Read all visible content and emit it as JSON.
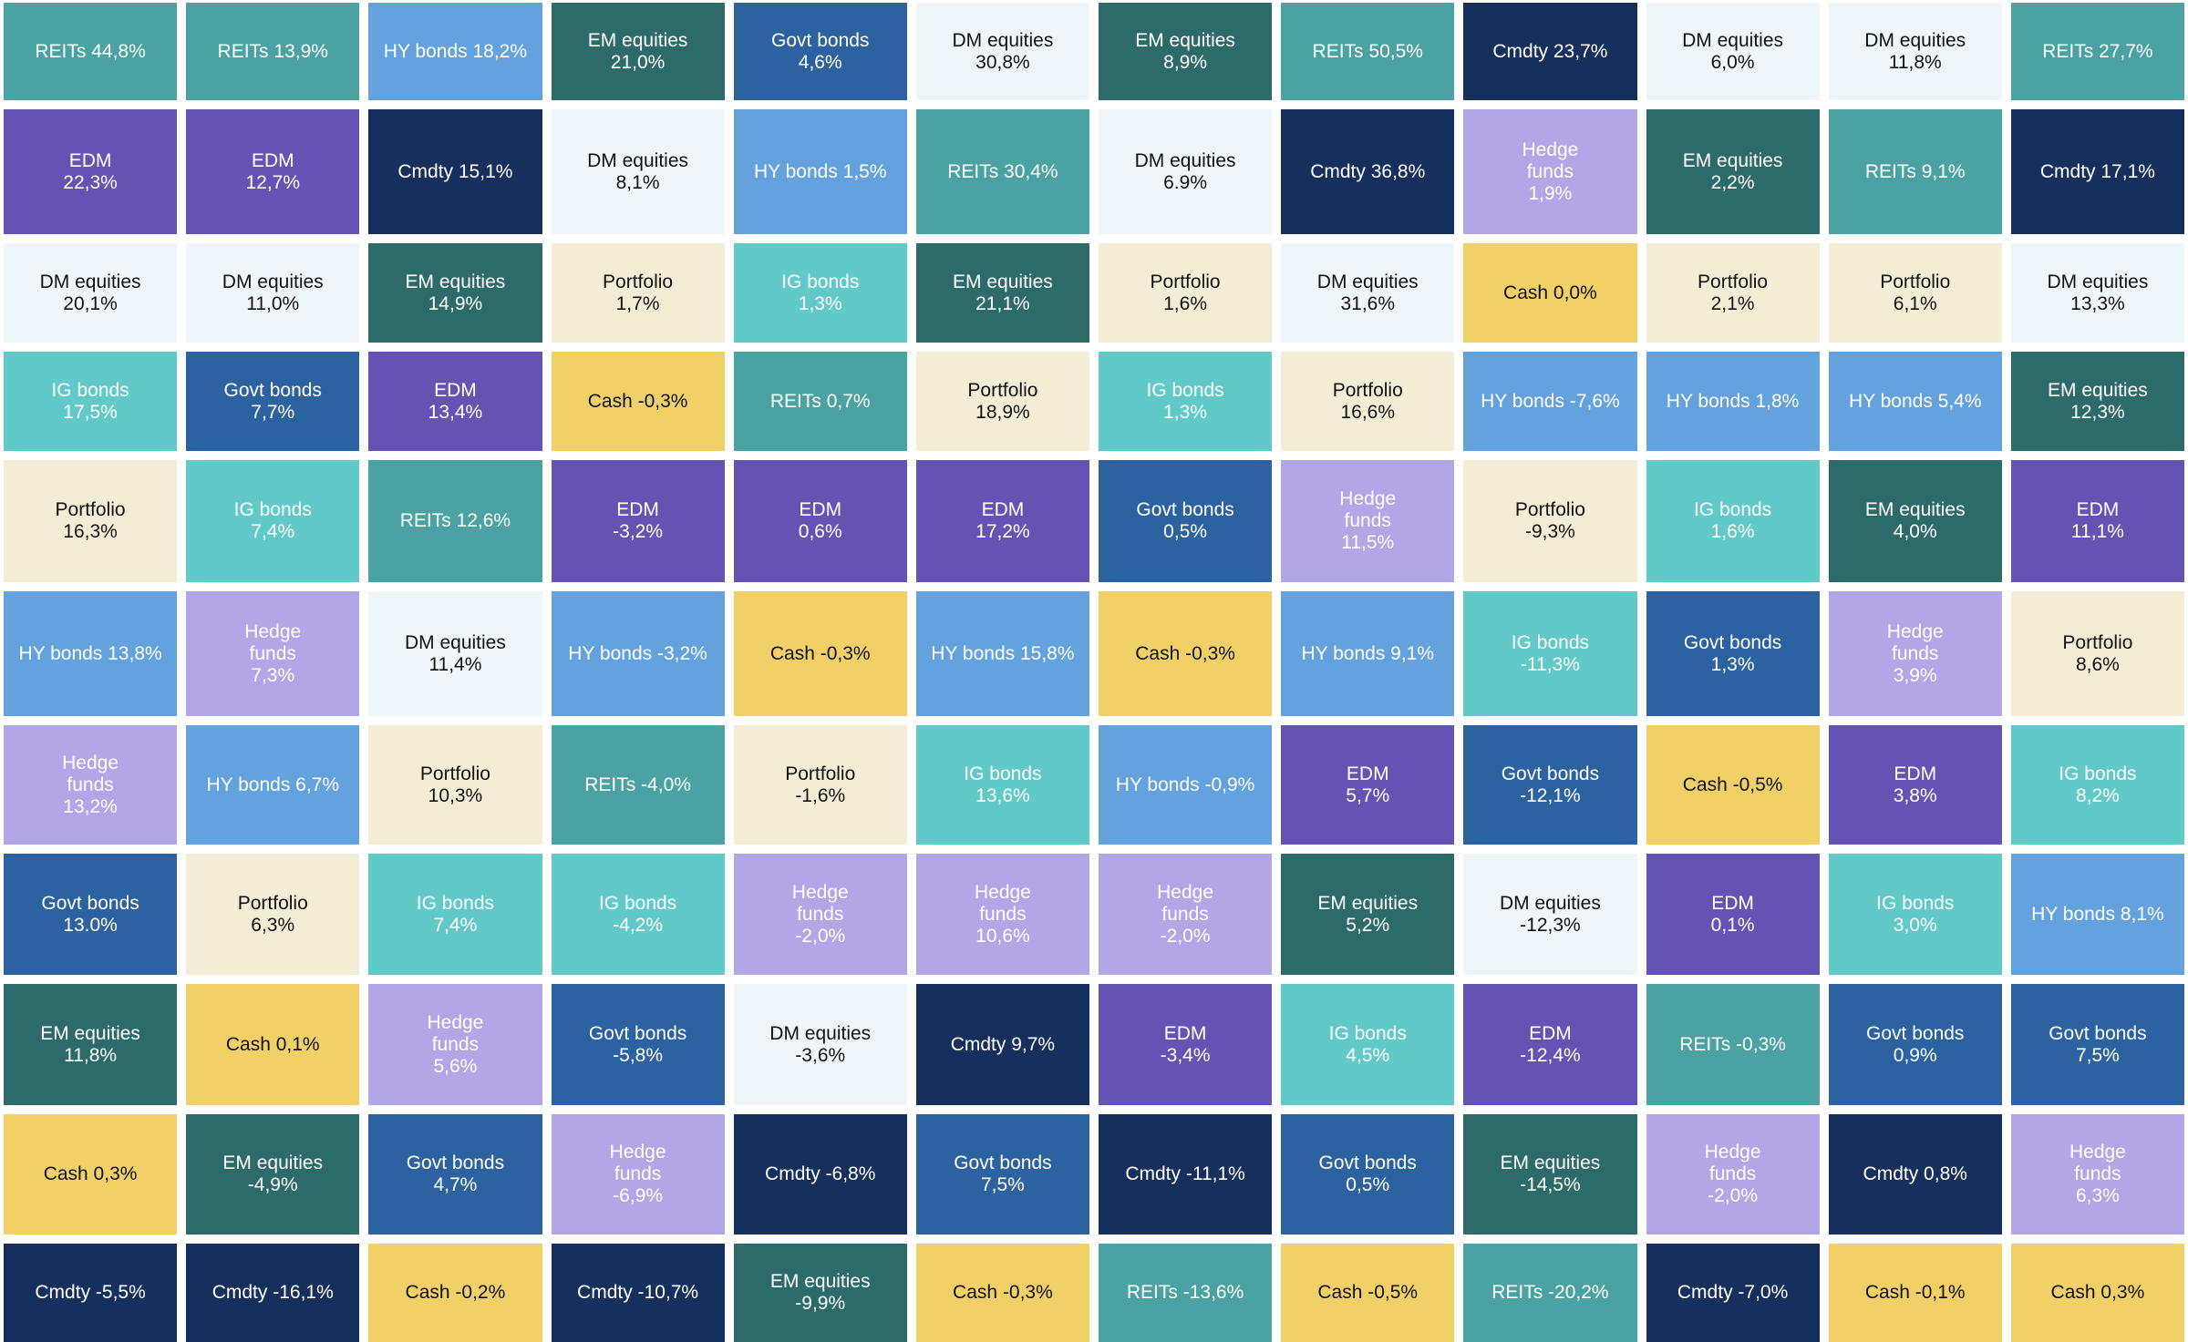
{
  "chart_data": {
    "type": "table",
    "title": "",
    "columns": 12,
    "colors": {
      "REITs": "#4aa3a2",
      "HY bonds": "#63a2dd",
      "EM equities": "#2c6b69",
      "Govt bonds": "#2d62a0",
      "DM equities": "#eef6f9",
      "Cmdty": "#172f5d",
      "EDM": "#6453b2",
      "Hedge funds": "#b2a6e6",
      "Portfolio": "#f4edd6",
      "IG bonds": "#62c9c9",
      "Cash": "#f2d068"
    },
    "rows": [
      [
        {
          "asset": "REITs",
          "label": "REITs 44,8%"
        },
        {
          "asset": "REITs",
          "label": "REITs 13,9%"
        },
        {
          "asset": "HY bonds",
          "label": "HY bonds 18,2%"
        },
        {
          "asset": "EM equities",
          "label": "EM equities\n21,0%"
        },
        {
          "asset": "Govt bonds",
          "label": "Govt bonds\n4,6%"
        },
        {
          "asset": "DM equities",
          "label": "DM equities\n30,8%"
        },
        {
          "asset": "EM equities",
          "label": "EM equities\n8,9%"
        },
        {
          "asset": "REITs",
          "label": "REITs 50,5%"
        },
        {
          "asset": "Cmdty",
          "label": "Cmdty 23,7%"
        },
        {
          "asset": "DM equities",
          "label": "DM equities\n6,0%"
        },
        {
          "asset": "DM equities",
          "label": "DM equities\n11,8%"
        },
        {
          "asset": "REITs",
          "label": "REITs 27,7%"
        }
      ],
      [
        {
          "asset": "EDM",
          "label": "EDM\n22,3%"
        },
        {
          "asset": "EDM",
          "label": "EDM\n12,7%"
        },
        {
          "asset": "Cmdty",
          "label": "Cmdty 15,1%"
        },
        {
          "asset": "DM equities",
          "label": "DM equities\n8,1%"
        },
        {
          "asset": "HY bonds",
          "label": "HY bonds 1,5%"
        },
        {
          "asset": "REITs",
          "label": "REITs 30,4%"
        },
        {
          "asset": "DM equities",
          "label": "DM equities\n6.9%"
        },
        {
          "asset": "Cmdty",
          "label": "Cmdty 36,8%"
        },
        {
          "asset": "Hedge funds",
          "label": "Hedge\nfunds\n1,9%"
        },
        {
          "asset": "EM equities",
          "label": "EM equities\n2,2%"
        },
        {
          "asset": "REITs",
          "label": "REITs 9,1%"
        },
        {
          "asset": "Cmdty",
          "label": "Cmdty 17,1%"
        }
      ],
      [
        {
          "asset": "DM equities",
          "label": "DM equities\n20,1%"
        },
        {
          "asset": "DM equities",
          "label": "DM equities\n11,0%"
        },
        {
          "asset": "EM equities",
          "label": "EM equities\n14,9%"
        },
        {
          "asset": "Portfolio",
          "label": "Portfolio\n1,7%"
        },
        {
          "asset": "IG bonds",
          "label": "IG bonds\n1,3%"
        },
        {
          "asset": "EM equities",
          "label": "EM equities\n21,1%"
        },
        {
          "asset": "Portfolio",
          "label": "Portfolio\n1,6%"
        },
        {
          "asset": "DM equities",
          "label": "DM equities\n31,6%"
        },
        {
          "asset": "Cash",
          "label": "Cash 0,0%"
        },
        {
          "asset": "Portfolio",
          "label": "Portfolio\n2,1%"
        },
        {
          "asset": "Portfolio",
          "label": "Portfolio\n6,1%"
        },
        {
          "asset": "DM equities",
          "label": "DM equities\n13,3%"
        }
      ],
      [
        {
          "asset": "IG bonds",
          "label": "IG bonds\n17,5%"
        },
        {
          "asset": "Govt bonds",
          "label": "Govt bonds\n7,7%"
        },
        {
          "asset": "EDM",
          "label": "EDM\n13,4%"
        },
        {
          "asset": "Cash",
          "label": "Cash -0,3%"
        },
        {
          "asset": "REITs",
          "label": "REITs 0,7%"
        },
        {
          "asset": "Portfolio",
          "label": "Portfolio\n18,9%"
        },
        {
          "asset": "IG bonds",
          "label": "IG bonds\n1,3%"
        },
        {
          "asset": "Portfolio",
          "label": "Portfolio\n16,6%"
        },
        {
          "asset": "HY bonds",
          "label": "HY bonds -7,6%"
        },
        {
          "asset": "HY bonds",
          "label": "HY bonds 1,8%"
        },
        {
          "asset": "HY bonds",
          "label": "HY bonds 5,4%"
        },
        {
          "asset": "EM equities",
          "label": "EM equities\n12,3%"
        }
      ],
      [
        {
          "asset": "Portfolio",
          "label": "Portfolio\n16,3%"
        },
        {
          "asset": "IG bonds",
          "label": "IG bonds\n7,4%"
        },
        {
          "asset": "REITs",
          "label": "REITs 12,6%"
        },
        {
          "asset": "EDM",
          "label": "EDM\n-3,2%"
        },
        {
          "asset": "EDM",
          "label": "EDM\n0,6%"
        },
        {
          "asset": "EDM",
          "label": "EDM\n17,2%"
        },
        {
          "asset": "Govt bonds",
          "label": "Govt bonds\n0,5%"
        },
        {
          "asset": "Hedge funds",
          "label": "Hedge\nfunds\n11,5%"
        },
        {
          "asset": "Portfolio",
          "label": "Portfolio\n-9,3%"
        },
        {
          "asset": "IG bonds",
          "label": "IG bonds\n1,6%"
        },
        {
          "asset": "EM equities",
          "label": "EM equities\n4,0%"
        },
        {
          "asset": "EDM",
          "label": "EDM\n11,1%"
        }
      ],
      [
        {
          "asset": "HY bonds",
          "label": "HY bonds 13,8%"
        },
        {
          "asset": "Hedge funds",
          "label": "Hedge\nfunds\n7,3%"
        },
        {
          "asset": "DM equities",
          "label": "DM equities\n11,4%"
        },
        {
          "asset": "HY bonds",
          "label": "HY bonds -3,2%"
        },
        {
          "asset": "Cash",
          "label": "Cash -0,3%"
        },
        {
          "asset": "HY bonds",
          "label": "HY bonds 15,8%"
        },
        {
          "asset": "Cash",
          "label": "Cash -0,3%"
        },
        {
          "asset": "HY bonds",
          "label": "HY bonds 9,1%"
        },
        {
          "asset": "IG bonds",
          "label": "IG bonds\n-11,3%"
        },
        {
          "asset": "Govt bonds",
          "label": "Govt bonds\n1,3%"
        },
        {
          "asset": "Hedge funds",
          "label": "Hedge\nfunds\n3,9%"
        },
        {
          "asset": "Portfolio",
          "label": "Portfolio\n8,6%"
        }
      ],
      [
        {
          "asset": "Hedge funds",
          "label": "Hedge\nfunds\n13,2%"
        },
        {
          "asset": "HY bonds",
          "label": "HY bonds 6,7%"
        },
        {
          "asset": "Portfolio",
          "label": "Portfolio\n10,3%"
        },
        {
          "asset": "REITs",
          "label": "REITs -4,0%"
        },
        {
          "asset": "Portfolio",
          "label": "Portfolio\n-1,6%"
        },
        {
          "asset": "IG bonds",
          "label": "IG bonds\n13,6%"
        },
        {
          "asset": "HY bonds",
          "label": "HY bonds -0,9%"
        },
        {
          "asset": "EDM",
          "label": "EDM\n5,7%"
        },
        {
          "asset": "Govt bonds",
          "label": "Govt bonds\n-12,1%"
        },
        {
          "asset": "Cash",
          "label": "Cash -0,5%"
        },
        {
          "asset": "EDM",
          "label": "EDM\n3,8%"
        },
        {
          "asset": "IG bonds",
          "label": "IG bonds\n8,2%"
        }
      ],
      [
        {
          "asset": "Govt bonds",
          "label": "Govt bonds\n13.0%"
        },
        {
          "asset": "Portfolio",
          "label": "Portfolio\n6,3%"
        },
        {
          "asset": "IG bonds",
          "label": "IG bonds\n7,4%"
        },
        {
          "asset": "IG bonds",
          "label": "IG bonds\n-4,2%"
        },
        {
          "asset": "Hedge funds",
          "label": "Hedge\nfunds\n-2,0%"
        },
        {
          "asset": "Hedge funds",
          "label": "Hedge\nfunds\n10,6%"
        },
        {
          "asset": "Hedge funds",
          "label": "Hedge\nfunds\n-2,0%"
        },
        {
          "asset": "EM equities",
          "label": "EM equities\n5,2%"
        },
        {
          "asset": "DM equities",
          "label": "DM equities\n-12,3%"
        },
        {
          "asset": "EDM",
          "label": "EDM\n0,1%"
        },
        {
          "asset": "IG bonds",
          "label": "IG bonds\n3,0%"
        },
        {
          "asset": "HY bonds",
          "label": "HY bonds 8,1%"
        }
      ],
      [
        {
          "asset": "EM equities",
          "label": "EM equities\n11,8%"
        },
        {
          "asset": "Cash",
          "label": "Cash 0,1%"
        },
        {
          "asset": "Hedge funds",
          "label": "Hedge\nfunds\n5,6%"
        },
        {
          "asset": "Govt bonds",
          "label": "Govt bonds\n-5,8%"
        },
        {
          "asset": "DM equities",
          "label": "DM equities\n-3,6%"
        },
        {
          "asset": "Cmdty",
          "label": "Cmdty 9,7%"
        },
        {
          "asset": "EDM",
          "label": "EDM\n-3,4%"
        },
        {
          "asset": "IG bonds",
          "label": "IG bonds\n4,5%"
        },
        {
          "asset": "EDM",
          "label": "EDM\n-12,4%"
        },
        {
          "asset": "REITs",
          "label": "REITs -0,3%"
        },
        {
          "asset": "Govt bonds",
          "label": "Govt bonds\n0,9%"
        },
        {
          "asset": "Govt bonds",
          "label": "Govt bonds\n7,5%"
        }
      ],
      [
        {
          "asset": "Cash",
          "label": "Cash 0,3%"
        },
        {
          "asset": "EM equities",
          "label": "EM equities\n-4,9%"
        },
        {
          "asset": "Govt bonds",
          "label": "Govt bonds\n4,7%"
        },
        {
          "asset": "Hedge funds",
          "label": "Hedge\nfunds\n-6,9%"
        },
        {
          "asset": "Cmdty",
          "label": "Cmdty -6,8%"
        },
        {
          "asset": "Govt bonds",
          "label": "Govt bonds\n7,5%"
        },
        {
          "asset": "Cmdty",
          "label": "Cmdty -11,1%"
        },
        {
          "asset": "Govt bonds",
          "label": "Govt bonds\n0,5%"
        },
        {
          "asset": "EM equities",
          "label": "EM equities\n-14,5%"
        },
        {
          "asset": "Hedge funds",
          "label": "Hedge\nfunds\n-2,0%"
        },
        {
          "asset": "Cmdty",
          "label": "Cmdty 0,8%"
        },
        {
          "asset": "Hedge funds",
          "label": "Hedge\nfunds\n6,3%"
        }
      ],
      [
        {
          "asset": "Cmdty",
          "label": "Cmdty -5,5%"
        },
        {
          "asset": "Cmdty",
          "label": "Cmdty -16,1%"
        },
        {
          "asset": "Cash",
          "label": "Cash -0,2%"
        },
        {
          "asset": "Cmdty",
          "label": "Cmdty -10,7%"
        },
        {
          "asset": "EM equities",
          "label": "EM equities\n-9,9%"
        },
        {
          "asset": "Cash",
          "label": "Cash -0,3%"
        },
        {
          "asset": "REITs",
          "label": "REITs -13,6%"
        },
        {
          "asset": "Cash",
          "label": "Cash -0,5%"
        },
        {
          "asset": "REITs",
          "label": "REITs -20,2%"
        },
        {
          "asset": "Cmdty",
          "label": "Cmdty -7,0%"
        },
        {
          "asset": "Cash",
          "label": "Cash -0,1%"
        },
        {
          "asset": "Cash",
          "label": "Cash 0,3%"
        }
      ]
    ]
  }
}
